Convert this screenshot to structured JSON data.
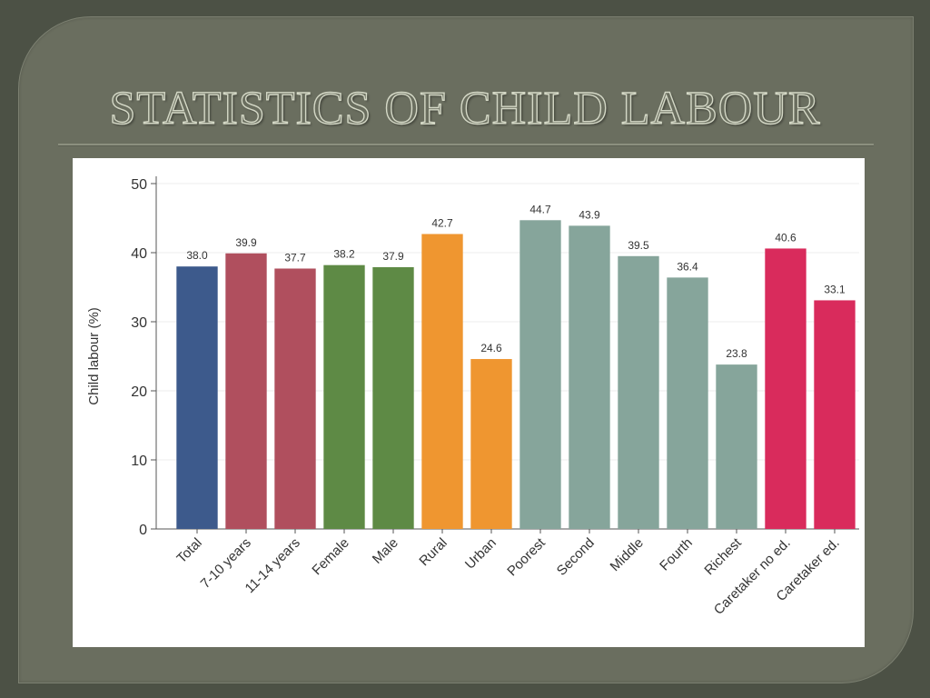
{
  "slide": {
    "title": "STATISTICS OF CHILD LABOUR"
  },
  "chart_data": {
    "type": "bar",
    "ylabel": "Child labour (%)",
    "xlabel": "",
    "ylim": [
      0,
      50
    ],
    "yticks": [
      0,
      10,
      20,
      30,
      40,
      50
    ],
    "grid": true,
    "categories": [
      "Total",
      "7-10 years",
      "11-14 years",
      "Female",
      "Male",
      "Rural",
      "Urban",
      "Poorest",
      "Second",
      "Middle",
      "Fourth",
      "Richest",
      "Caretaker no ed.",
      "Caretaker ed."
    ],
    "values": [
      38.0,
      39.9,
      37.7,
      38.2,
      37.9,
      42.7,
      24.6,
      44.7,
      43.9,
      39.5,
      36.4,
      23.8,
      40.6,
      33.1
    ],
    "value_labels": [
      "38.0",
      "39.9",
      "37.7",
      "38.2",
      "37.9",
      "42.7",
      "24.6",
      "44.7",
      "43.9",
      "39.5",
      "36.4",
      "23.8",
      "40.6",
      "33.1"
    ],
    "colors": [
      "#3d5a8c",
      "#b04f5e",
      "#b04f5e",
      "#5e8a45",
      "#5e8a45",
      "#ef9630",
      "#ef9630",
      "#86a59b",
      "#86a59b",
      "#86a59b",
      "#86a59b",
      "#86a59b",
      "#d92b5c",
      "#d92b5c"
    ]
  }
}
